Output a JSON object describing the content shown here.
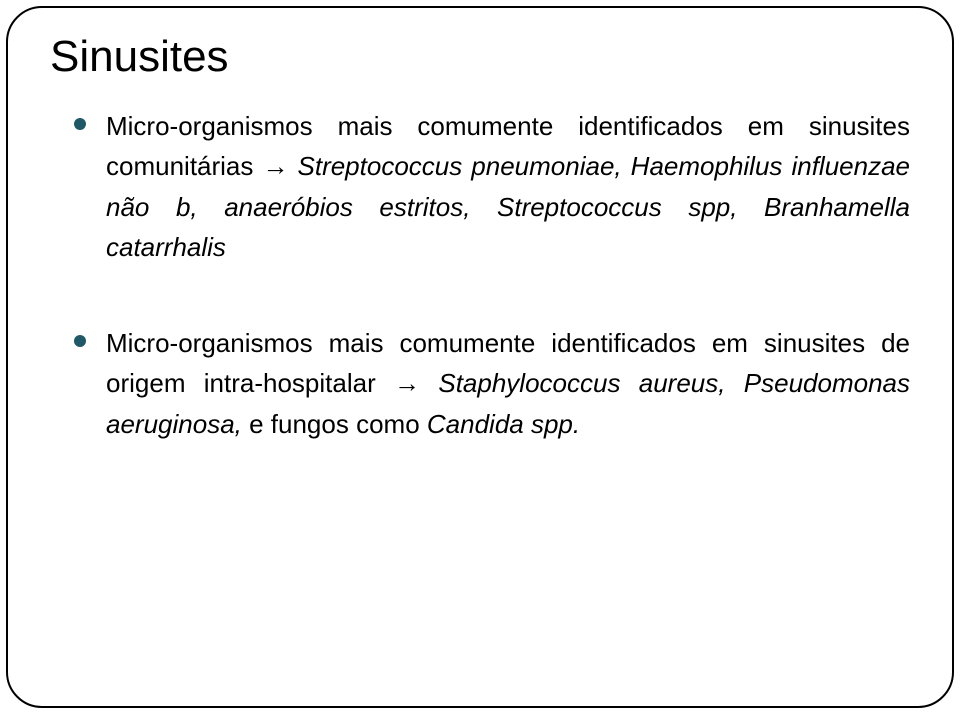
{
  "title": "Sinusites",
  "bullets": [
    {
      "lead": "Micro-organismos mais comumente identificados em sinusites comunitárias ",
      "arrow": "→",
      "tail_italic": " Streptococcus pneumoniae, Haemophilus influenzae não b, anaeróbios estritos, Streptococcus spp, Branhamella catarrhalis"
    },
    {
      "lead": "Micro-organismos mais comumente identificados em sinusites de origem intra-hospitalar ",
      "arrow": "→",
      "tail_italic": " Staphylococcus aureus, Pseudomonas aeruginosa, ",
      "tail_plain": "e fungos como ",
      "tail_italic2": "Candida spp."
    }
  ],
  "colors": {
    "dot": "#205867",
    "text": "#000000",
    "border": "#000000",
    "background": "#ffffff"
  },
  "typography": {
    "title_fontsize": 44,
    "body_fontsize": 26
  }
}
